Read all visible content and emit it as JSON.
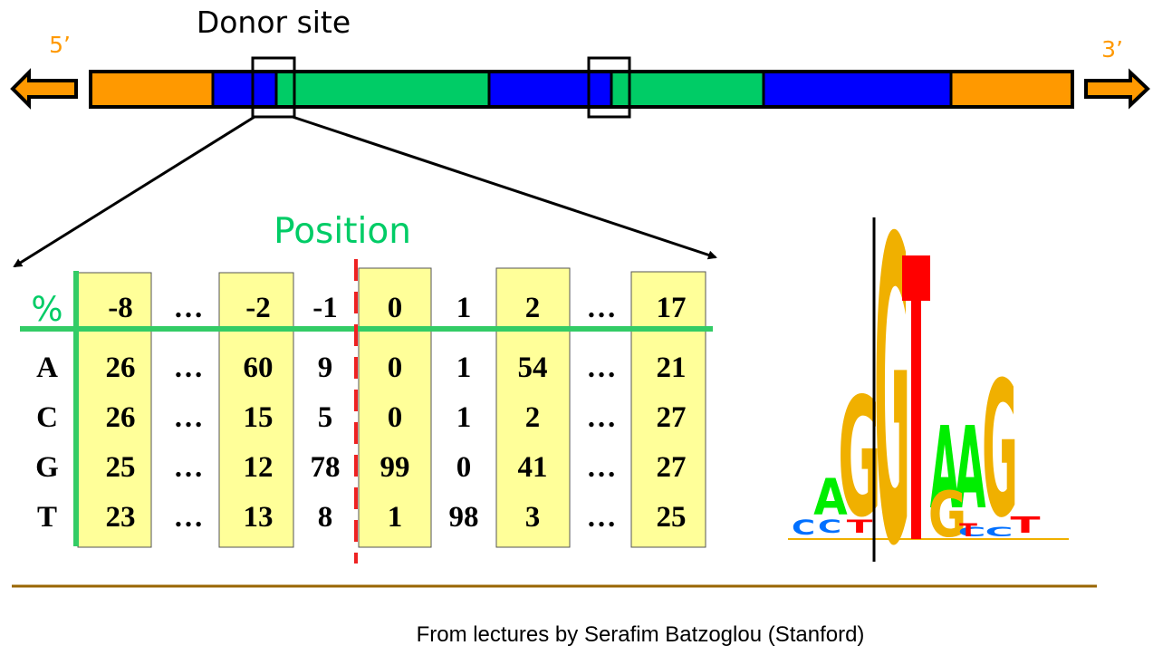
{
  "diagram": {
    "title": "Donor site",
    "five_prime_label": "5’",
    "three_prime_label": "3’",
    "position_label": "Position",
    "percent_label": "%",
    "credit": "From lectures by Serafim Batzoglou (Stanford)",
    "gene_segments": [
      {
        "kind": "utr",
        "color": "#ff9900"
      },
      {
        "kind": "exon",
        "color": "#0000ff"
      },
      {
        "kind": "intron",
        "color": "#00cc66"
      },
      {
        "kind": "exon",
        "color": "#0000ff"
      },
      {
        "kind": "intron",
        "color": "#00cc66"
      },
      {
        "kind": "exon",
        "color": "#0000ff"
      },
      {
        "kind": "utr",
        "color": "#ff9900"
      }
    ],
    "colors": {
      "utr": "#ff9900",
      "exon": "#0000ff",
      "intron": "#00cc66",
      "highlight": "#ffff99",
      "green_line": "#33cc66",
      "dashed_line": "#ee2222",
      "rule": "#996600"
    }
  },
  "matrix": {
    "positions": [
      "-8",
      "…",
      "-2",
      "-1",
      "0",
      "1",
      "2",
      "…",
      "17"
    ],
    "rows": [
      {
        "base": "A",
        "values": [
          "26",
          "…",
          "60",
          "9",
          "0",
          "1",
          "54",
          "…",
          "21"
        ]
      },
      {
        "base": "C",
        "values": [
          "26",
          "…",
          "15",
          "5",
          "0",
          "1",
          "2",
          "…",
          "27"
        ]
      },
      {
        "base": "G",
        "values": [
          "25",
          "…",
          "12",
          "78",
          "99",
          "0",
          "41",
          "…",
          "27"
        ]
      },
      {
        "base": "T",
        "values": [
          "23",
          "…",
          "13",
          "8",
          "1",
          "98",
          "3",
          "…",
          "25"
        ]
      }
    ]
  },
  "logo": {
    "letters": [
      {
        "char": "A",
        "color": "#00ee00"
      },
      {
        "char": "G",
        "color": "#f0b000"
      },
      {
        "char": "G",
        "color": "#f0b000"
      },
      {
        "char": "T",
        "color": "#ff0000"
      },
      {
        "char": "A",
        "color": "#00ee00"
      },
      {
        "char": "A",
        "color": "#00ee00"
      },
      {
        "char": "G",
        "color": "#f0b000"
      },
      {
        "char": "G",
        "color": "#f0b000"
      },
      {
        "char": "C",
        "color": "#0070ff"
      },
      {
        "char": "T",
        "color": "#ff0000"
      }
    ]
  }
}
